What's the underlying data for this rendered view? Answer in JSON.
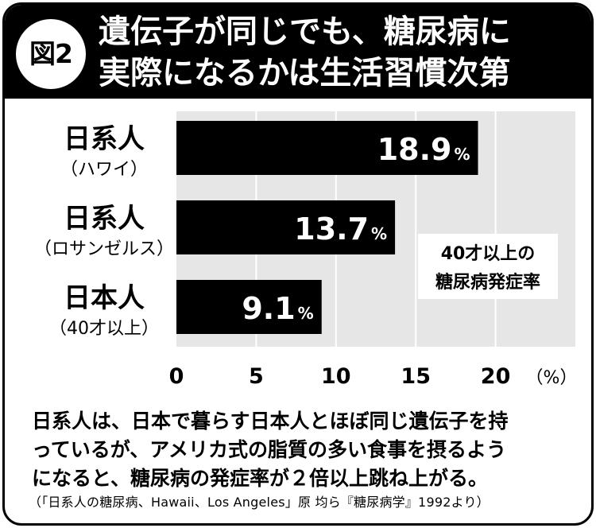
{
  "header": {
    "badge": "図2",
    "title_line1": "遺伝子が同じでも、糖尿病に",
    "title_line2": "実際になるかは生活習慣次第"
  },
  "chart_data": {
    "type": "bar",
    "orientation": "horizontal",
    "categories": [
      {
        "name": "日系人",
        "sub": "（ハワイ）"
      },
      {
        "name": "日系人",
        "sub": "（ロサンゼルス）"
      },
      {
        "name": "日本人",
        "sub": "（40才以上）"
      }
    ],
    "values": [
      18.9,
      13.7,
      9.1
    ],
    "value_labels": [
      "18.9",
      "13.7",
      "9.1"
    ],
    "value_unit": "%",
    "xlim": [
      0,
      25
    ],
    "xticks": [
      0,
      5,
      10,
      15,
      20
    ],
    "x_unit": "（%）",
    "grid": true,
    "annotation_line1": "40才以上の",
    "annotation_line2": "糖尿病発症率",
    "colors": {
      "bar": "#000000",
      "plot_bg": "#e6e6e6",
      "grid": "#ffffff",
      "label": "#ffffff"
    }
  },
  "description": {
    "line1": "日系人は、日本で暮らす日本人とほぼ同じ遺伝子を持",
    "line2": "っているが、アメリカ式の脂質の多い食事を摂るよう",
    "line3": "になると、糖尿病の発症率が２倍以上跳ね上がる。"
  },
  "source": "（「日系人の糖尿病、Hawaii、Los Angeles」原 均ら『糖尿病学』1992より）"
}
